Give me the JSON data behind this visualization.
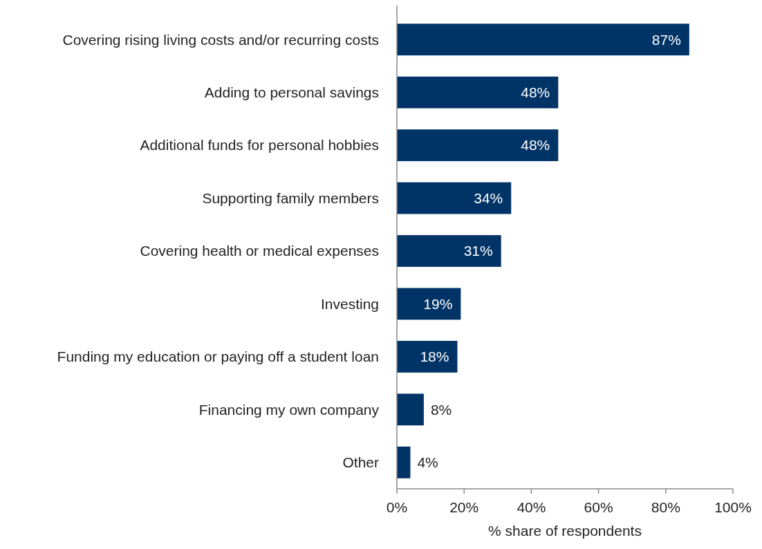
{
  "chart_data": {
    "type": "bar",
    "orientation": "horizontal",
    "xlabel": "% share of respondents",
    "categories": [
      "Covering rising living costs and/or recurring costs",
      "Adding to personal savings",
      "Additional funds for personal hobbies",
      "Supporting family members",
      "Covering health or medical expenses",
      "Investing",
      "Funding my education or paying off a student loan",
      "Financing my own company",
      "Other"
    ],
    "values": [
      87,
      48,
      48,
      34,
      31,
      19,
      18,
      8,
      4
    ],
    "value_labels": [
      "87%",
      "48%",
      "48%",
      "34%",
      "31%",
      "19%",
      "18%",
      "8%",
      "4%"
    ],
    "color": "#003366",
    "xlim": [
      0,
      100
    ],
    "xticks": [
      {
        "value": 0,
        "label": "0%"
      },
      {
        "value": 20,
        "label": "20%"
      },
      {
        "value": 40,
        "label": "40%"
      },
      {
        "value": 60,
        "label": "60%"
      },
      {
        "value": 80,
        "label": "80%"
      },
      {
        "value": 100,
        "label": "100%"
      }
    ],
    "grid": false
  }
}
